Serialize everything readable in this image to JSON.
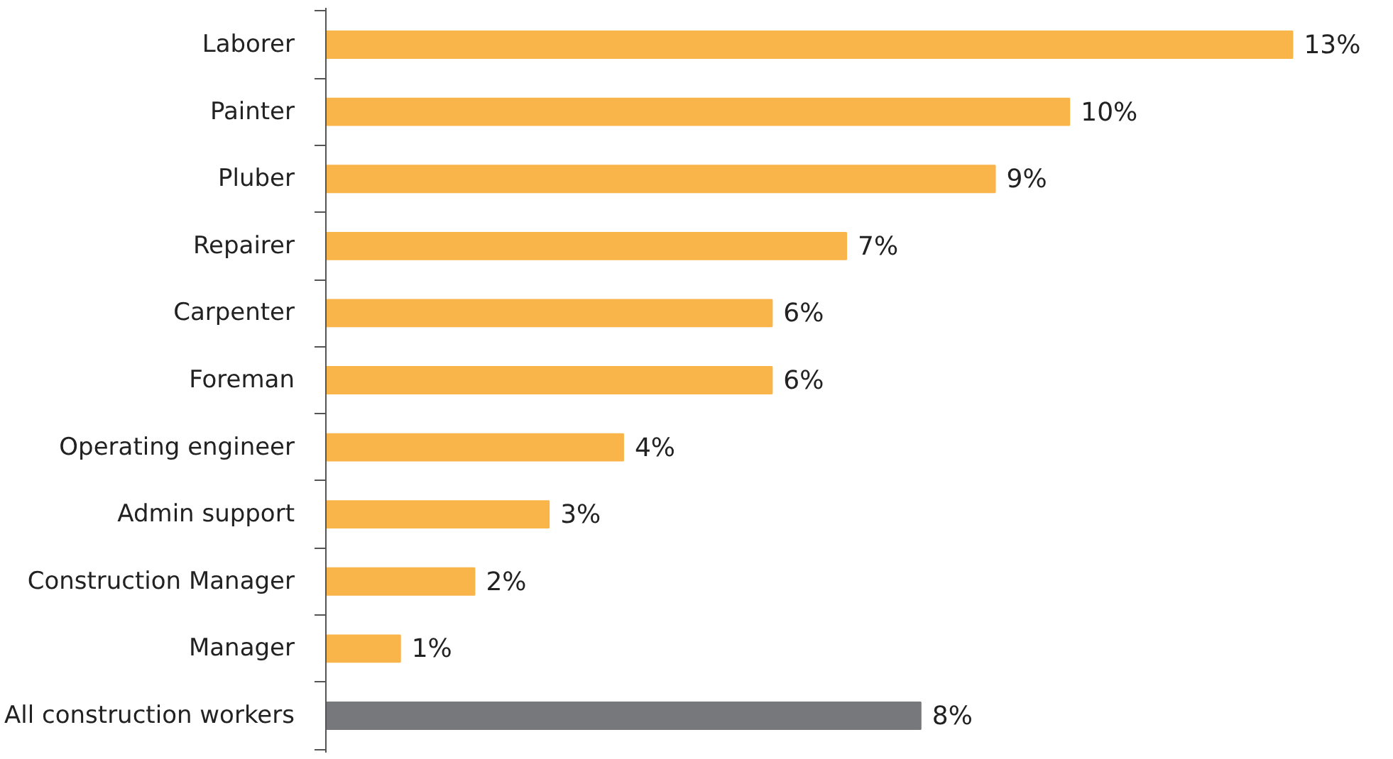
{
  "chart_data": {
    "type": "bar",
    "orientation": "horizontal",
    "categories": [
      "Laborer",
      "Painter",
      "Pluber",
      "Repairer",
      "Carpenter",
      "Foreman",
      "Operating engineer",
      "Admin support",
      "Construction Manager",
      "Manager",
      "All construction workers"
    ],
    "values": [
      13,
      10,
      9,
      7,
      6,
      6,
      4,
      3,
      2,
      1,
      8
    ],
    "colors": [
      "#f9b44a",
      "#f9b44a",
      "#f9b44a",
      "#f9b44a",
      "#f9b44a",
      "#f9b44a",
      "#f9b44a",
      "#f9b44a",
      "#f9b44a",
      "#f9b44a",
      "#77787b"
    ],
    "value_labels": [
      "13%",
      "10%",
      "9%",
      "7%",
      "6%",
      "6%",
      "4%",
      "3%",
      "2%",
      "1%",
      "8%"
    ]
  }
}
